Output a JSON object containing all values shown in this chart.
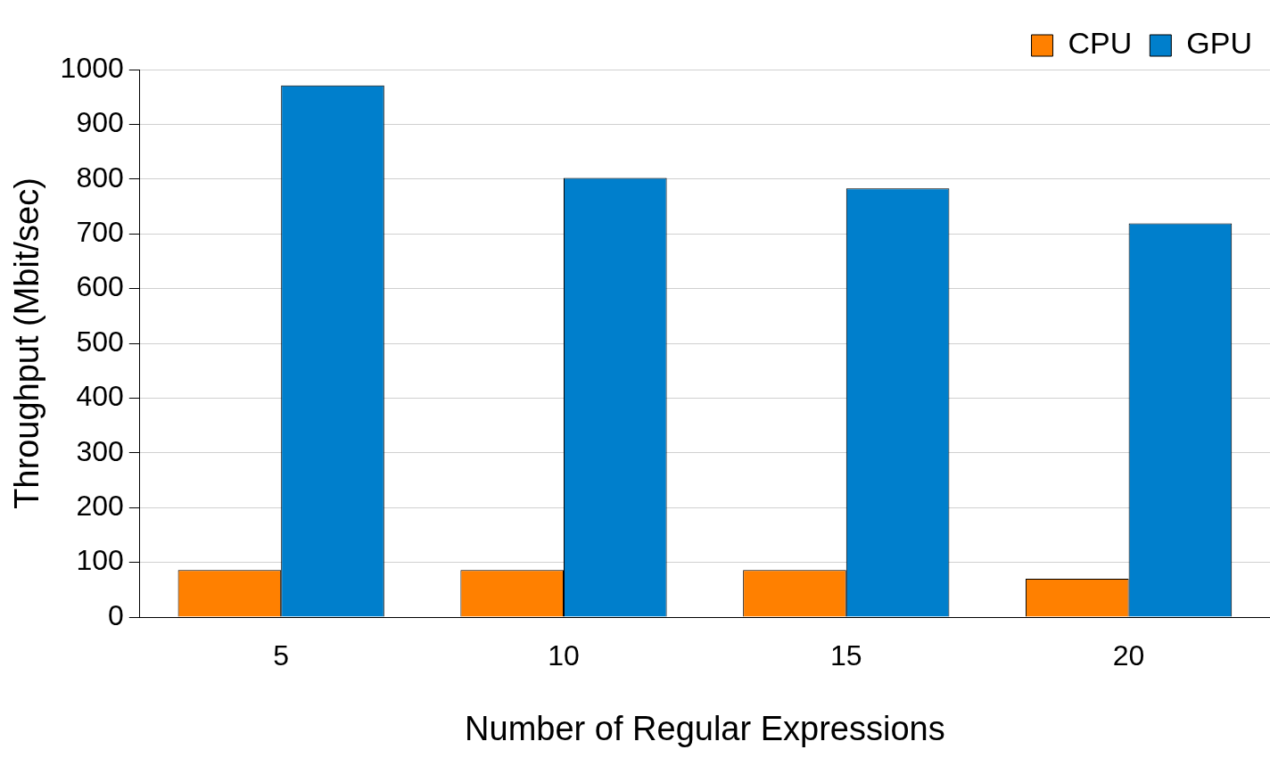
{
  "chart_data": {
    "type": "bar",
    "xlabel": "Number of Regular Expressions",
    "ylabel": "Throughput (Mbit/sec)",
    "categories": [
      "5",
      "10",
      "15",
      "20"
    ],
    "series": [
      {
        "name": "CPU",
        "color": "#ff8000",
        "values": [
          86,
          86,
          86,
          70
        ]
      },
      {
        "name": "GPU",
        "color": "#007fcc",
        "values": [
          971,
          802,
          783,
          719
        ]
      }
    ],
    "ylim": [
      0,
      1000
    ],
    "yticks": [
      0,
      100,
      200,
      300,
      400,
      500,
      600,
      700,
      800,
      900,
      1000
    ],
    "grid": "y",
    "legend": "top right"
  }
}
